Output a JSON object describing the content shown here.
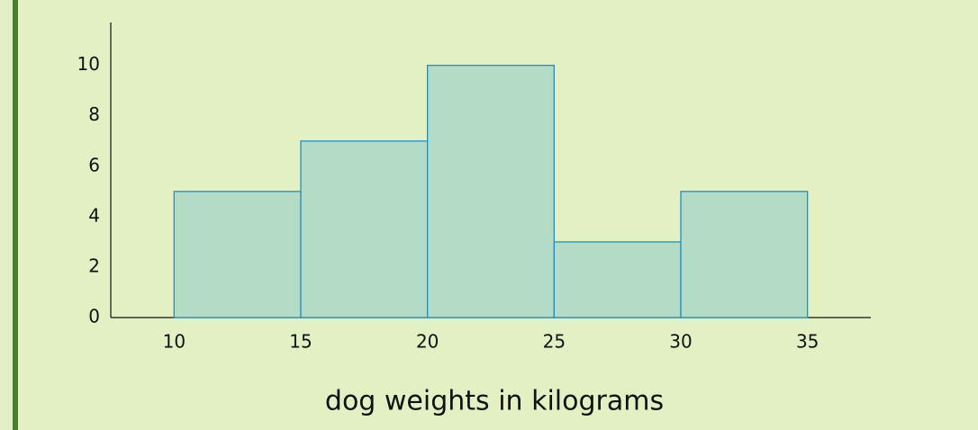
{
  "chart_data": {
    "type": "histogram",
    "x_label": "dog weights in kilograms",
    "bins": [
      10,
      15,
      20,
      25,
      30,
      35
    ],
    "values": [
      5,
      7,
      10,
      3,
      5
    ],
    "color": "#b3dbc6",
    "edge_color": "#1f8fc4",
    "xlim": [
      7.5,
      37.5
    ],
    "ylim": [
      0,
      11.7
    ],
    "xticks": [
      10,
      15,
      20,
      25,
      30,
      35
    ],
    "yticks": [
      0,
      2,
      4,
      6,
      8,
      10
    ],
    "grid": false
  }
}
